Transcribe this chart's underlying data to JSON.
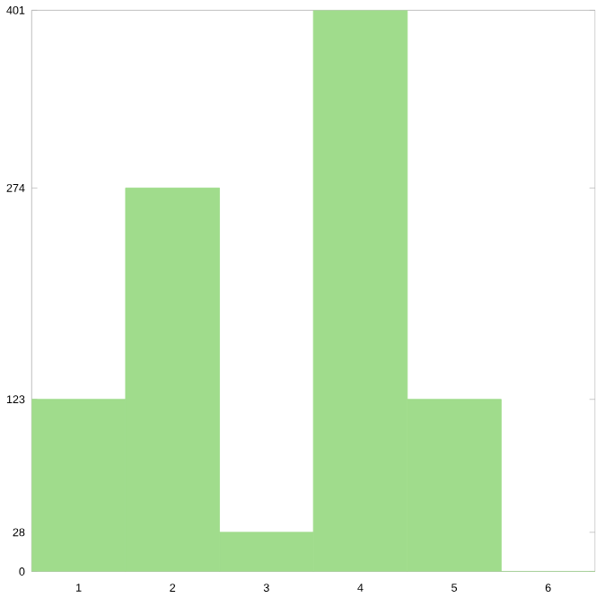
{
  "chart_data": {
    "type": "bar",
    "categories": [
      "1",
      "2",
      "3",
      "4",
      "5",
      "6"
    ],
    "values": [
      123,
      274,
      28,
      401,
      123,
      0
    ],
    "color": "#a0dc8c",
    "ylim": [
      0,
      401
    ],
    "yticks": [
      0,
      28,
      123,
      274,
      401
    ],
    "grid": false
  }
}
